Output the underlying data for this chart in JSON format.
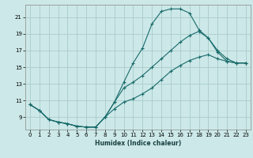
{
  "xlabel": "Humidex (Indice chaleur)",
  "bg_color": "#cce8e8",
  "grid_color": "#aacccc",
  "line_color": "#1a6b6b",
  "xlim": [
    -0.5,
    23.5
  ],
  "ylim": [
    7.5,
    22.5
  ],
  "yticks": [
    9,
    11,
    13,
    15,
    17,
    19,
    21
  ],
  "xticks": [
    0,
    1,
    2,
    3,
    4,
    5,
    6,
    7,
    8,
    9,
    10,
    11,
    12,
    13,
    14,
    15,
    16,
    17,
    18,
    19,
    20,
    21,
    22,
    23
  ],
  "line1_x": [
    0,
    1,
    2,
    3,
    4,
    5,
    6,
    7,
    8,
    9,
    10,
    11,
    12,
    13,
    14,
    15,
    16,
    17,
    18,
    19,
    20,
    21,
    22,
    23
  ],
  "line1_y": [
    10.5,
    9.8,
    8.7,
    8.4,
    8.2,
    7.9,
    7.8,
    7.8,
    9.0,
    10.8,
    13.2,
    15.5,
    17.3,
    20.2,
    21.7,
    22.0,
    22.0,
    21.5,
    19.5,
    18.5,
    16.8,
    15.7,
    15.5,
    15.5
  ],
  "line2_x": [
    0,
    1,
    2,
    3,
    4,
    5,
    6,
    7,
    8,
    9,
    10,
    11,
    12,
    13,
    14,
    15,
    16,
    17,
    18,
    19,
    20,
    21,
    22,
    23
  ],
  "line2_y": [
    10.5,
    9.8,
    8.7,
    8.4,
    8.2,
    7.9,
    7.8,
    7.8,
    9.0,
    10.8,
    12.5,
    13.2,
    14.0,
    15.0,
    16.0,
    17.0,
    18.0,
    18.8,
    19.3,
    18.5,
    17.0,
    16.0,
    15.5,
    15.5
  ],
  "line3_x": [
    0,
    1,
    2,
    3,
    4,
    5,
    6,
    7,
    8,
    9,
    10,
    11,
    12,
    13,
    14,
    15,
    16,
    17,
    18,
    19,
    20,
    21,
    22,
    23
  ],
  "line3_y": [
    10.5,
    9.8,
    8.7,
    8.4,
    8.2,
    7.9,
    7.8,
    7.8,
    9.0,
    10.0,
    10.8,
    11.2,
    11.8,
    12.5,
    13.5,
    14.5,
    15.2,
    15.8,
    16.2,
    16.5,
    16.0,
    15.7,
    15.5,
    15.5
  ]
}
